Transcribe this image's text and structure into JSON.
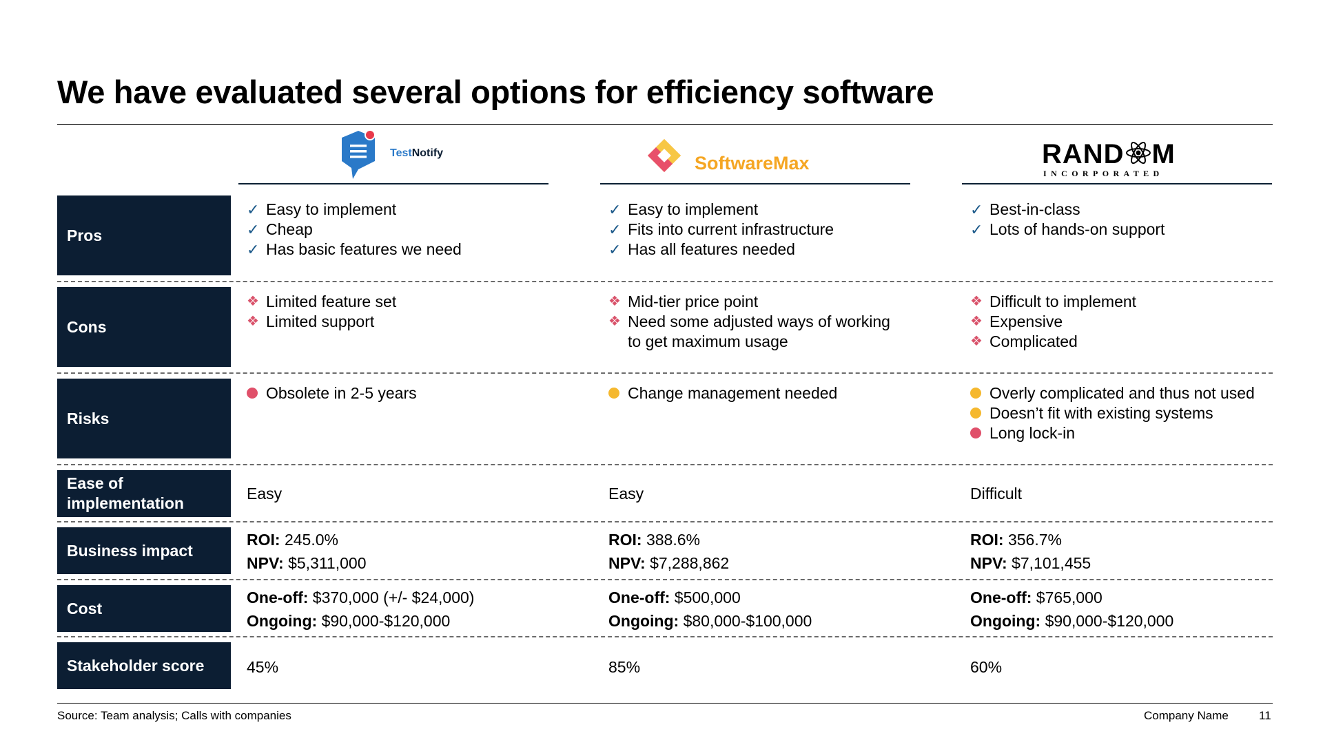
{
  "title": "We have evaluated several options for efficiency software",
  "vendors": [
    {
      "name_a": "Test",
      "name_b": "Notify",
      "icon": "chat-bubble-icon"
    },
    {
      "name": "SoftwareMax",
      "icon": "diamond-logo-icon"
    },
    {
      "name": "RAND",
      "name_end": "M",
      "sub": "INCORPORATED",
      "icon": "atom-icon"
    }
  ],
  "rows": {
    "pros": {
      "label": "Pros"
    },
    "cons": {
      "label": "Cons"
    },
    "risks": {
      "label": "Risks"
    },
    "ease": {
      "label_1": "Ease of",
      "label_2": "implementation"
    },
    "impact": {
      "label": "Business impact"
    },
    "cost": {
      "label": "Cost"
    },
    "stakeholder": {
      "label": "Stakeholder score"
    }
  },
  "columns": [
    {
      "pros": [
        "Easy to implement",
        "Cheap",
        "Has basic features we need"
      ],
      "cons": [
        "Limited feature set",
        "Limited support"
      ],
      "risks": [
        {
          "text": "Obsolete in 2-5 years",
          "level": "red"
        }
      ],
      "ease": "Easy",
      "roi_label": "ROI:",
      "roi": " 245.0%",
      "npv_label": "NPV:",
      "npv": " $5,311,000",
      "oneoff_label": "One-off:",
      "oneoff": " $370,000 (+/- $24,000)",
      "ongoing_label": "Ongoing:",
      "ongoing": " $90,000-$120,000",
      "score": "45%"
    },
    {
      "pros": [
        "Easy to implement",
        "Fits into current infrastructure",
        "Has all features needed"
      ],
      "cons": [
        "Mid-tier price point",
        "Need some adjusted ways of working",
        "to get maximum usage"
      ],
      "risks": [
        {
          "text": "Change management needed",
          "level": "yellow"
        }
      ],
      "ease": "Easy",
      "roi_label": "ROI:",
      "roi": " 388.6%",
      "npv_label": "NPV:",
      "npv": " $7,288,862",
      "oneoff_label": "One-off:",
      "oneoff": " $500,000",
      "ongoing_label": "Ongoing:",
      "ongoing": " $80,000-$100,000",
      "score": "85%"
    },
    {
      "pros": [
        "Best-in-class",
        "Lots of hands-on support"
      ],
      "cons": [
        "Difficult to implement",
        "Expensive",
        "Complicated"
      ],
      "risks": [
        {
          "text": "Overly complicated and thus not used",
          "level": "yellow"
        },
        {
          "text": "Doesn’t fit with existing systems",
          "level": "yellow"
        },
        {
          "text": "Long lock-in",
          "level": "red"
        }
      ],
      "ease": "Difficult",
      "roi_label": "ROI:",
      "roi": " 356.7%",
      "npv_label": "NPV:",
      "npv": " $7,101,455",
      "oneoff_label": "One-off:",
      "oneoff": " $765,000",
      "ongoing_label": "Ongoing:",
      "ongoing": " $90,000-$120,000",
      "score": "60%"
    }
  ],
  "footer": {
    "source": "Source: Team analysis; Calls with companies",
    "company": "Company Name",
    "page": "11"
  },
  "colors": {
    "navy": "#0c1e33",
    "red": "#e0506a",
    "yellow": "#f5b82e",
    "check": "#1d5a8a"
  }
}
